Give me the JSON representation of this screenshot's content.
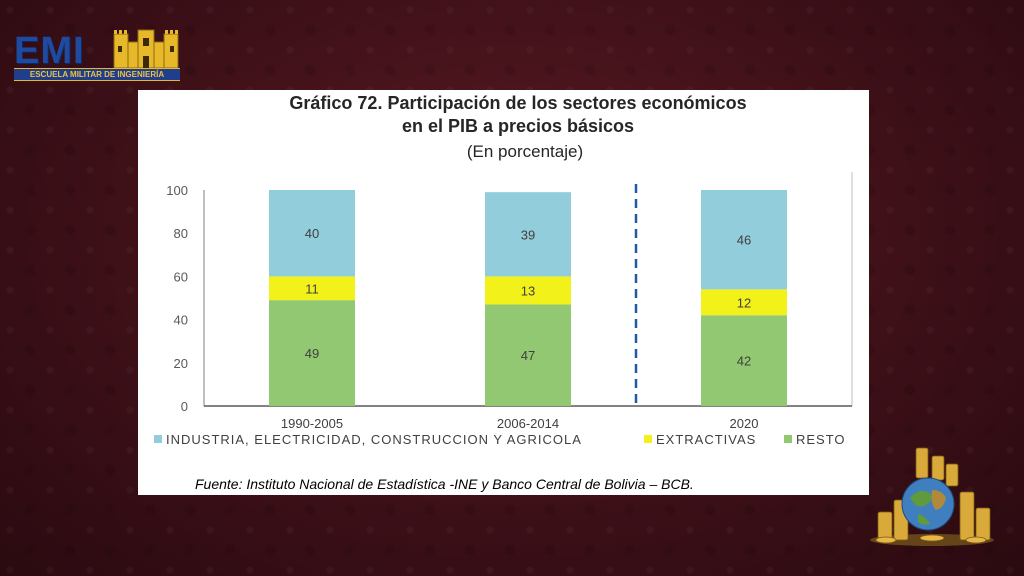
{
  "logo": {
    "text": "EMI",
    "subtext": "ESCUELA MILITAR DE INGENIERÍA"
  },
  "chart_title_lines": [
    "Gráfico 72. Participación de los sectores económicos",
    "en el PIB a precios básicos"
  ],
  "chart_subtitle": "(En porcentaje)",
  "source": "Fuente: Instituto Nacional de Estadística -INE y Banco Central de Bolivia – BCB.",
  "colors": {
    "industria": "#92cddc",
    "extractivas": "#f2f21a",
    "resto": "#92c871",
    "divider": "#1f5aa6"
  },
  "chart_data": {
    "type": "bar",
    "stacked": true,
    "title": "Gráfico 72. Participación de los sectores económicos en el PIB a precios básicos",
    "subtitle": "(En porcentaje)",
    "categories": [
      "1990-2005",
      "2006-2014",
      "2020"
    ],
    "series": [
      {
        "name": "RESTO",
        "values": [
          49,
          47,
          42
        ]
      },
      {
        "name": "EXTRACTIVAS",
        "values": [
          11,
          13,
          12
        ]
      },
      {
        "name": "INDUSTRIA, ELECTRICIDAD,  CONSTRUCCION Y AGRICOLA",
        "values": [
          40,
          39,
          46
        ]
      }
    ],
    "ylim": [
      0,
      100
    ],
    "yticks": [
      0,
      20,
      40,
      60,
      80,
      100
    ],
    "legend_position": "bottom",
    "legend_order": [
      "INDUSTRIA, ELECTRICIDAD,  CONSTRUCCION Y AGRICOLA",
      "EXTRACTIVAS",
      "RESTO"
    ],
    "divider_after_category": 1
  }
}
